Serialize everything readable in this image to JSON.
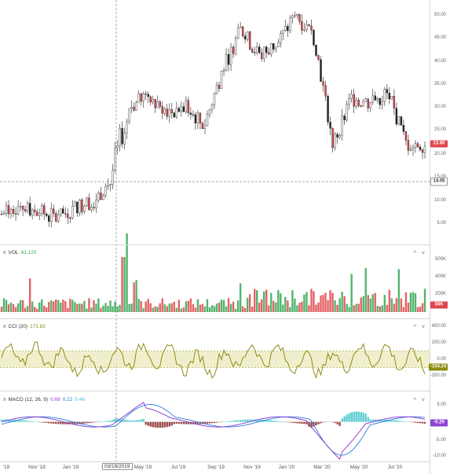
{
  "panes": {
    "volume": {
      "name": "VOL",
      "value": "42,120"
    },
    "cci": {
      "name": "CCI (20)",
      "value": "171.82"
    },
    "macd": {
      "name": "MACD (12, 26, 9)",
      "v1": "0.68",
      "v2": "0.22",
      "v3": "0.46"
    }
  },
  "controls": {
    "up": "^",
    "down": "˅"
  },
  "close_icon": "x",
  "price_axis": [
    "50.00",
    "45.00",
    "40.00",
    "35.00",
    "30.00",
    "25.00",
    "20.00",
    "15.00",
    "10.00",
    "5.00"
  ],
  "volume_axis": [
    "500K",
    "400K",
    "200K"
  ],
  "cci_axis": [
    "400.00",
    "200.00",
    "0.00",
    "-200.00"
  ],
  "macd_axis": [
    "5.00",
    "0.00",
    "-5.00",
    "-10.00"
  ],
  "tags": {
    "price": "23.80",
    "crosshair_price": "14.05",
    "volume": "56K",
    "cci": "-104.24",
    "macd": "-0.29"
  },
  "x_axis": [
    "'18",
    "Nov '18",
    "Jan '19",
    "M",
    "May '19",
    "Jul '19",
    "Sep '19",
    "Nov '19",
    "Jan '20",
    "Mar '20",
    "May '20",
    "Jul '20"
  ],
  "crosshair_date": "03/19/2019",
  "colors": {
    "up": "#34a853",
    "down": "#e0464c",
    "cci": "#8d8c13",
    "macd": "#8e44d6",
    "signal": "#2a7bde",
    "hist_pos": "#3ec4c8",
    "hist_neg": "#8a2b2b"
  },
  "chart_data": [
    {
      "type": "candlestick",
      "series": [
        {
          "name": "price",
          "x": [
            "2018-09",
            "2018-10",
            "2018-11",
            "2018-12",
            "2019-01",
            "2019-02",
            "2019-03",
            "2019-04",
            "2019-05",
            "2019-06",
            "2019-07",
            "2019-08",
            "2019-09",
            "2019-10",
            "2019-11",
            "2019-12",
            "2020-01",
            "2020-02",
            "2020-03",
            "2020-04",
            "2020-05",
            "2020-06",
            "2020-07",
            "2020-08"
          ],
          "values": [
            7,
            9,
            7.5,
            6,
            8.5,
            10,
            14,
            30,
            33,
            29,
            30,
            26,
            38,
            47,
            41,
            44,
            50,
            45,
            22,
            32,
            31,
            33,
            22,
            22
          ]
        }
      ],
      "ylim": [
        0,
        53
      ]
    },
    {
      "type": "bar",
      "series": [
        {
          "name": "VOL",
          "values": []
        }
      ]
    },
    {
      "type": "line",
      "series": [
        {
          "name": "CCI (20)",
          "values": []
        }
      ],
      "ylim": [
        -300,
        450
      ]
    },
    {
      "type": "line",
      "series": [
        {
          "name": "MACD (12, 26, 9)",
          "values": []
        }
      ],
      "ylim": [
        -11,
        6
      ]
    }
  ]
}
